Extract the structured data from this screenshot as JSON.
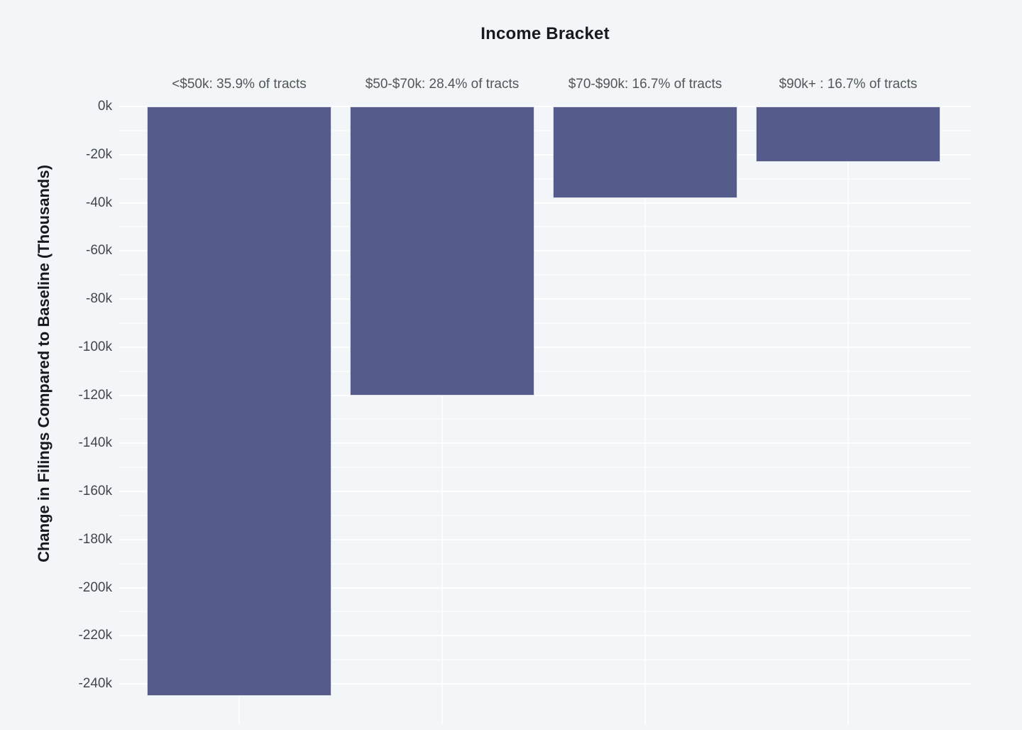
{
  "chart_data": {
    "type": "bar",
    "orientation": "vertical",
    "title": "Income Bracket",
    "xlabel": "Income Bracket",
    "ylabel": "Change in Filings Compared to Baseline (Thousands)",
    "categories": [
      "<$50k: 35.9% of tracts",
      "$50-$70k: 28.4% of tracts",
      "$70-$90k: 16.7% of tracts",
      "$90k+ : 16.7% of tracts"
    ],
    "values": [
      -245,
      -120,
      -38,
      -23
    ],
    "value_unit": "thousands of filings",
    "y_ticks": [
      "0k",
      "-20k",
      "-40k",
      "-60k",
      "-80k",
      "-100k",
      "-120k",
      "-140k",
      "-160k",
      "-180k",
      "-200k",
      "-220k",
      "-240k"
    ],
    "y_tick_values": [
      0,
      -20,
      -40,
      -60,
      -80,
      -100,
      -120,
      -140,
      -160,
      -180,
      -200,
      -220,
      -240
    ],
    "ylim": [
      -256,
      0
    ],
    "grid": {
      "horizontal_minor_every_k": 10,
      "horizontal_major_every_k": 20,
      "vertical_at_category_centers": true
    },
    "legend": "none",
    "colors": {
      "background": "#f2f6f9",
      "bar": "#555c8b",
      "gridline": "#ffffff",
      "title_text": "#16191d",
      "axis_title_text": "#16191d",
      "tick_label_text": "#43474c",
      "category_label_text": "#525659"
    }
  }
}
